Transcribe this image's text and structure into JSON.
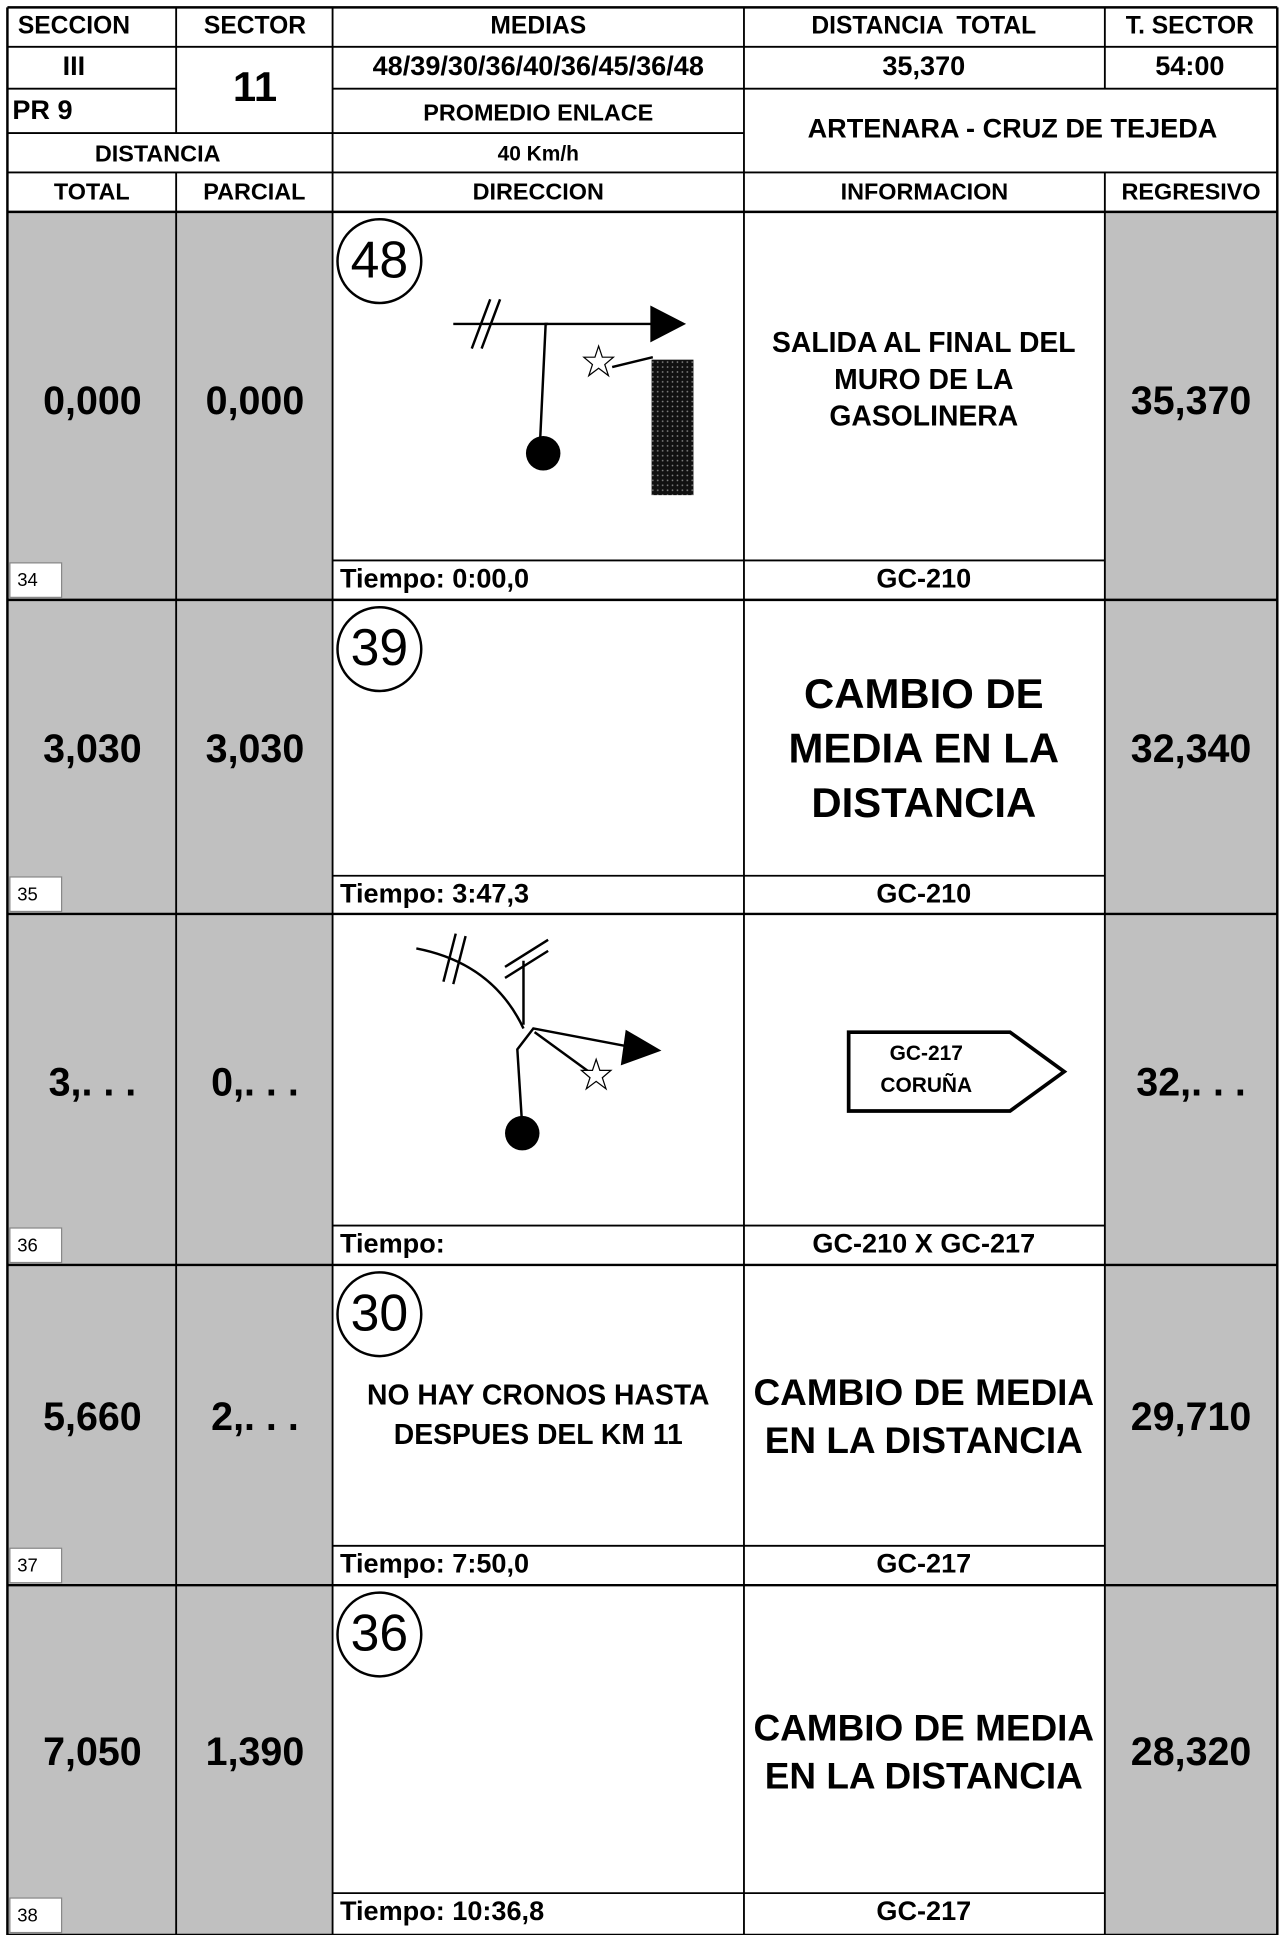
{
  "header": {
    "seccion_label": "SECCION",
    "sector_label": "SECTOR",
    "medias_label": "MEDIAS",
    "distancia_total_label": "DISTANCIA  TOTAL",
    "t_sector_label": "T. SECTOR",
    "seccion": "III",
    "sector": "11",
    "medias": "48/39/30/36/40/36/45/36/48",
    "distancia_total": "35,370",
    "t_sector": "54:00",
    "pr": "PR 9",
    "promedio_label": "PROMEDIO ENLACE",
    "promedio": "40 Km/h",
    "route": "ARTENARA - CRUZ DE TEJEDA",
    "distancia_label": "DISTANCIA",
    "columns": [
      "TOTAL",
      "PARCIAL",
      "DIRECCION",
      "INFORMACION",
      "REGRESIVO"
    ]
  },
  "rows": [
    {
      "number": "34",
      "total": "0,000",
      "parcial": "0,000",
      "speed": "48",
      "direction": [],
      "info": [
        "SALIDA AL FINAL DEL",
        "MURO DE LA",
        "GASOLINERA"
      ],
      "tiempo": "Tiempo: 0:00,0",
      "road": "GC-210",
      "regresivo": "35,370"
    },
    {
      "number": "35",
      "total": "3,030",
      "parcial": "3,030",
      "speed": "39",
      "direction": [],
      "info": [
        "CAMBIO DE",
        "MEDIA EN LA",
        "DISTANCIA"
      ],
      "tiempo": "Tiempo: 3:47,3",
      "road": "GC-210",
      "regresivo": "32,340"
    },
    {
      "number": "36",
      "total": "3,. . .",
      "parcial": "0,. . .",
      "direction": [],
      "info": [],
      "sign": [
        "GC-217",
        "CORUÑA"
      ],
      "tiempo": "Tiempo:",
      "road": "GC-210 X GC-217",
      "regresivo": "32,. . ."
    },
    {
      "number": "37",
      "total": "5,660",
      "parcial": "2,. . .",
      "speed": "30",
      "direction": [
        "NO HAY CRONOS HASTA",
        "DESPUES DEL KM 11"
      ],
      "info": [
        "CAMBIO DE MEDIA",
        "EN LA DISTANCIA"
      ],
      "tiempo": "Tiempo: 7:50,0",
      "road": "GC-217",
      "regresivo": "29,710"
    },
    {
      "number": "38",
      "total": "7,050",
      "parcial": "1,390",
      "speed": "36",
      "direction": [],
      "info": [
        "CAMBIO DE MEDIA",
        "EN LA DISTANCIA"
      ],
      "tiempo": "Tiempo: 10:36,8",
      "road": "GC-217",
      "regresivo": "28,320"
    }
  ]
}
